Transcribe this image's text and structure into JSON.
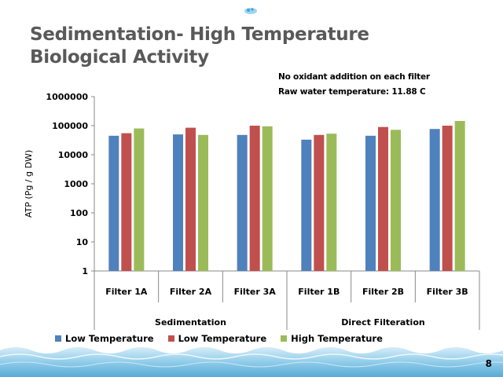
{
  "slide": {
    "title_line1": "Sedimentation- High Temperature",
    "title_line2": "Biological Activity",
    "note_line1": "No oxidant addition on each filter",
    "note_line2": "Raw water temperature: 11.88 C",
    "page_number": "8"
  },
  "chart_data": {
    "type": "bar",
    "ylabel": "ATP (Pg / g DW)",
    "yscale": "log",
    "ylim": [
      1,
      1000000
    ],
    "yticks": [
      "1",
      "10",
      "100",
      "1000",
      "10000",
      "100000",
      "1000000"
    ],
    "categories": [
      "Filter 1A",
      "Filter 2A",
      "Filter 3A",
      "Filter 1B",
      "Filter 2B",
      "Filter 3B"
    ],
    "groups": [
      {
        "label": "Sedimentation",
        "categories": [
          "Filter 1A",
          "Filter 2A",
          "Filter 3A"
        ]
      },
      {
        "label": "Direct Filteration",
        "categories": [
          "Filter 1B",
          "Filter 2B",
          "Filter 3B"
        ]
      }
    ],
    "series": [
      {
        "name": "Low Temperature",
        "color": "#4f81bd",
        "values": [
          45000,
          50000,
          48000,
          33000,
          45000,
          77000
        ]
      },
      {
        "name": "Low Temperature",
        "color": "#c0504d",
        "values": [
          55000,
          85000,
          100000,
          48000,
          90000,
          100000
        ]
      },
      {
        "name": "High Temperature",
        "color": "#9bbb59",
        "values": [
          80000,
          48000,
          95000,
          53000,
          72000,
          145000
        ]
      }
    ],
    "grid": false,
    "legend": "bottom"
  }
}
